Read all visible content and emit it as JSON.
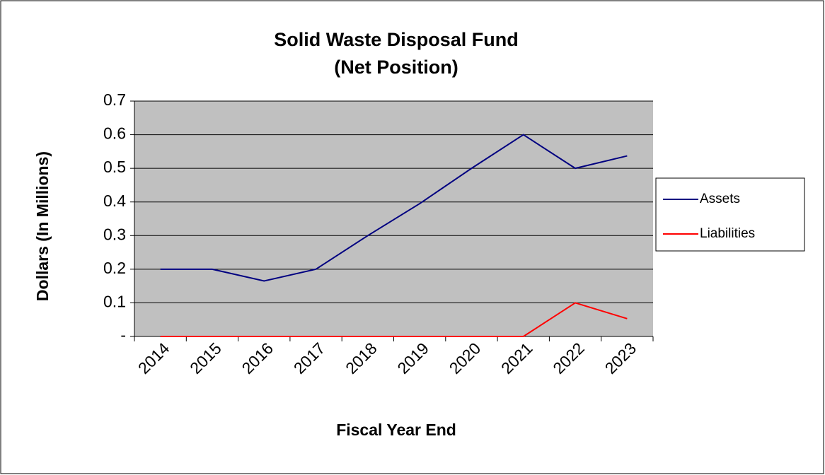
{
  "chart_data": {
    "type": "line",
    "title": "Solid Waste Disposal Fund",
    "subtitle": "(Net Position)",
    "x_label": "Fiscal Year End",
    "y_label": "Dollars (In Millions)",
    "categories": [
      "2014",
      "2015",
      "2016",
      "2017",
      "2018",
      "2019",
      "2020",
      "2021",
      "2022",
      "2023"
    ],
    "series": [
      {
        "name": "Assets",
        "color": "#000080",
        "values": [
          0.2,
          0.2,
          0.165,
          0.2,
          0.3,
          0.395,
          0.5,
          0.6,
          0.5,
          0.537
        ]
      },
      {
        "name": "Liabilities",
        "color": "#ff0000",
        "values": [
          0,
          0,
          0,
          0,
          0,
          0,
          0,
          0,
          0.1,
          0.053
        ]
      }
    ],
    "ylim": [
      0,
      0.7
    ],
    "yticks": [
      {
        "value": 0,
        "label": "-"
      },
      0.1,
      0.2,
      0.3,
      0.4,
      0.5,
      0.6,
      0.7
    ],
    "grid": true,
    "plot_background": "#c0c0c0",
    "legend": "right"
  }
}
